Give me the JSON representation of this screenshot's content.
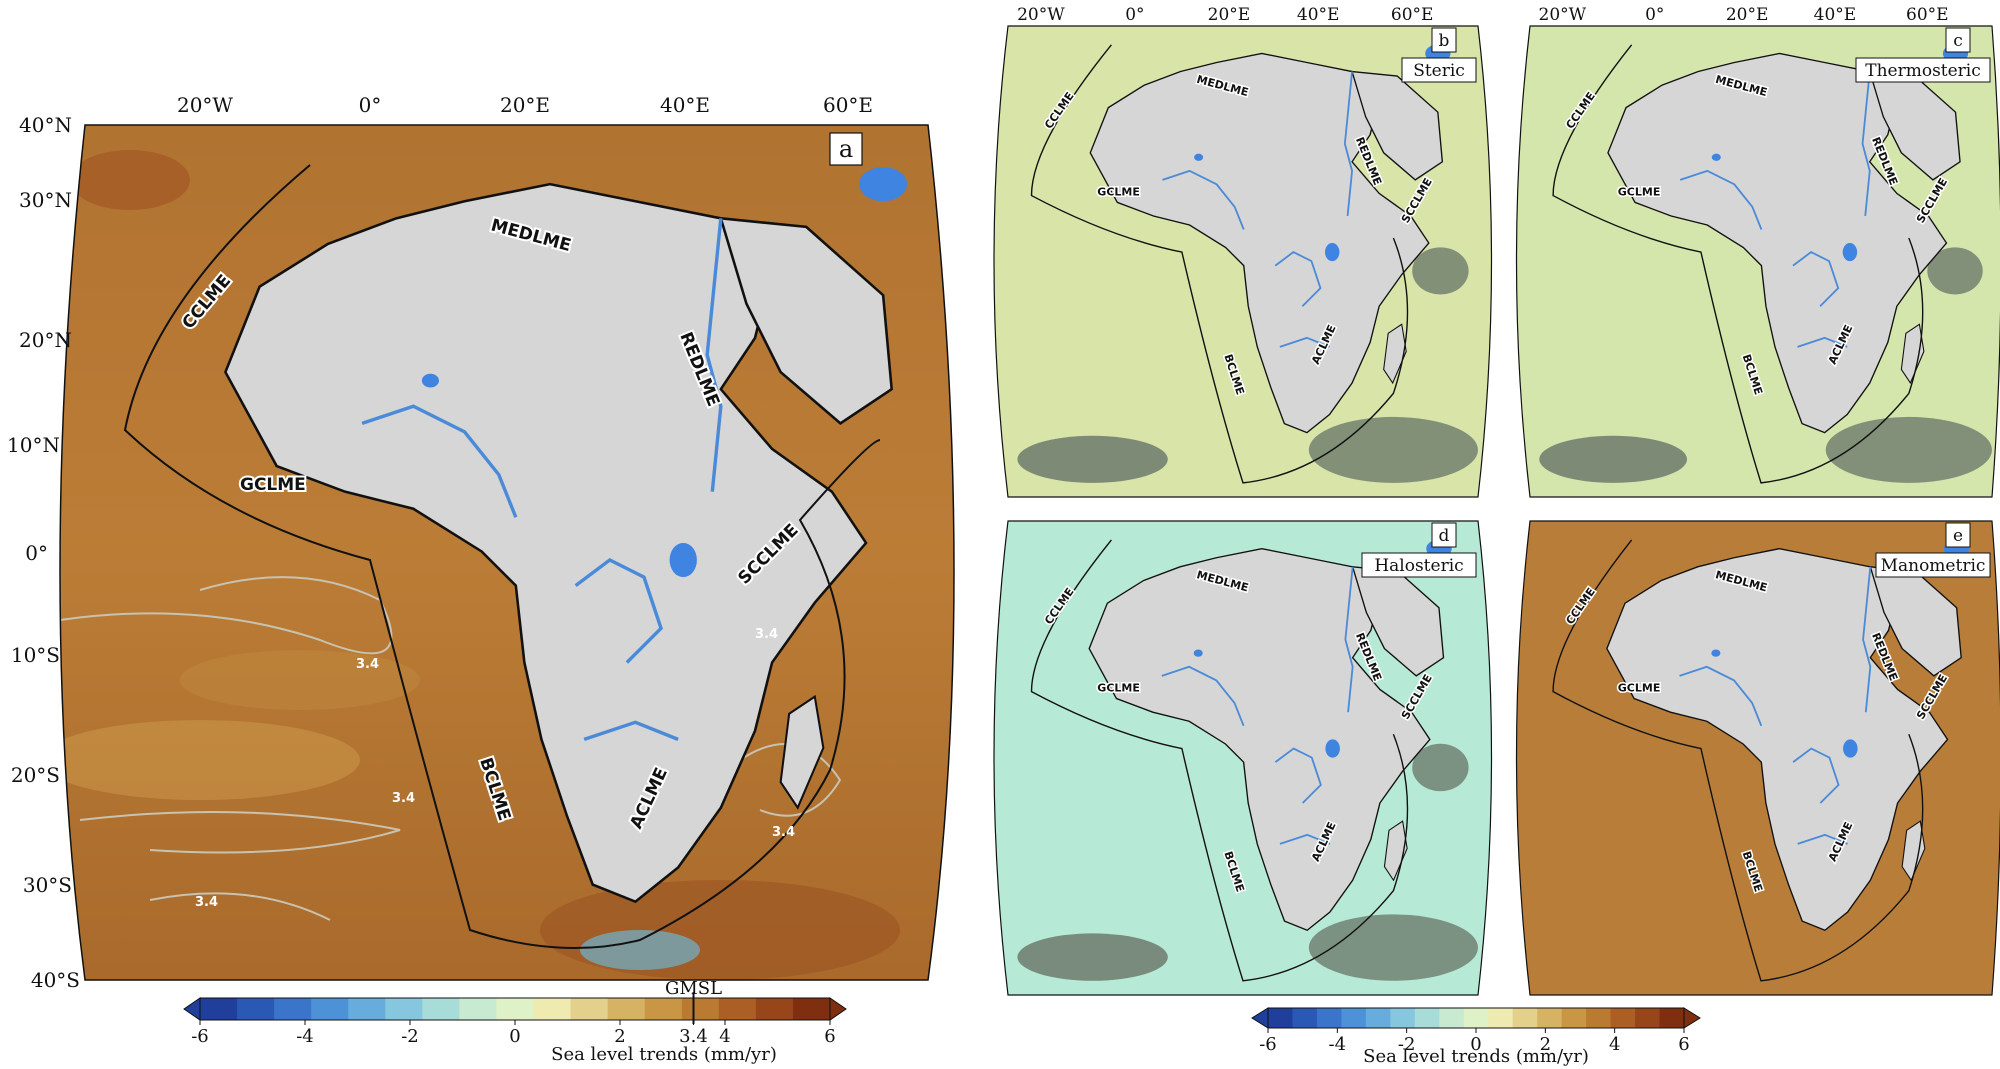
{
  "figure": {
    "panel_a": {
      "letter": "a",
      "lon_labels": [
        "20°W",
        "0°",
        "20°E",
        "40°E",
        "60°E"
      ],
      "lat_labels": [
        "40°N",
        "30°N",
        "20°N",
        "10°N",
        "0°",
        "10°S",
        "20°S",
        "30°S",
        "40°S"
      ],
      "lme_labels": [
        "MEDLME",
        "CCLME",
        "REDLME",
        "GCLME",
        "SCCLME",
        "BCLME",
        "ACLME"
      ],
      "contour_labels": [
        "3.4",
        "3.4",
        "3.4",
        "3.4",
        "3.4"
      ]
    },
    "small_panels": [
      {
        "letter": "b",
        "title": "Steric",
        "lon_labels": [
          "20°W",
          "0°",
          "20°E",
          "40°E",
          "60°E"
        ]
      },
      {
        "letter": "c",
        "title": "Thermosteric",
        "lon_labels": [
          "20°W",
          "0°",
          "20°E",
          "40°E",
          "60°E"
        ]
      },
      {
        "letter": "d",
        "title": "Halosteric"
      },
      {
        "letter": "e",
        "title": "Manometric"
      }
    ],
    "small_lme_labels": [
      "MEDLME",
      "CCLME",
      "REDLME",
      "GCLME",
      "SCCLME",
      "BCLME",
      "ACLME"
    ],
    "colorbar_main": {
      "ticks": [
        "-6",
        "-4",
        "-2",
        "0",
        "2",
        "3.4",
        "4",
        "6"
      ],
      "marker_label": "GMSL",
      "title": "Sea level trends (mm/yr)"
    },
    "colorbar_small": {
      "ticks": [
        "-6",
        "-4",
        "-2",
        "0",
        "2",
        "4",
        "6"
      ],
      "title": "Sea level trends (mm/yr)"
    },
    "colors": {
      "ocean_a": "#b5782e",
      "ocean_e": "#b97d3a",
      "ocean_b": "#d8e4a8",
      "ocean_c": "#d5e6ad",
      "ocean_d": "#b6ead6",
      "land": "#d6d6d6",
      "river": "#4a8ad8",
      "lake": "#3f84e0",
      "contour": "#c8c2b0",
      "masked": "#6d7a6c"
    },
    "colorbar_colors": [
      "#1f3f9a",
      "#2a58b5",
      "#3a75c9",
      "#4d92d6",
      "#66addd",
      "#86c7df",
      "#a8dcd8",
      "#c7ead0",
      "#dff1c6",
      "#eeeab0",
      "#e3d08a",
      "#d6b364",
      "#c99645",
      "#bb7a31",
      "#ab5f25",
      "#974619",
      "#7f2f10"
    ]
  }
}
